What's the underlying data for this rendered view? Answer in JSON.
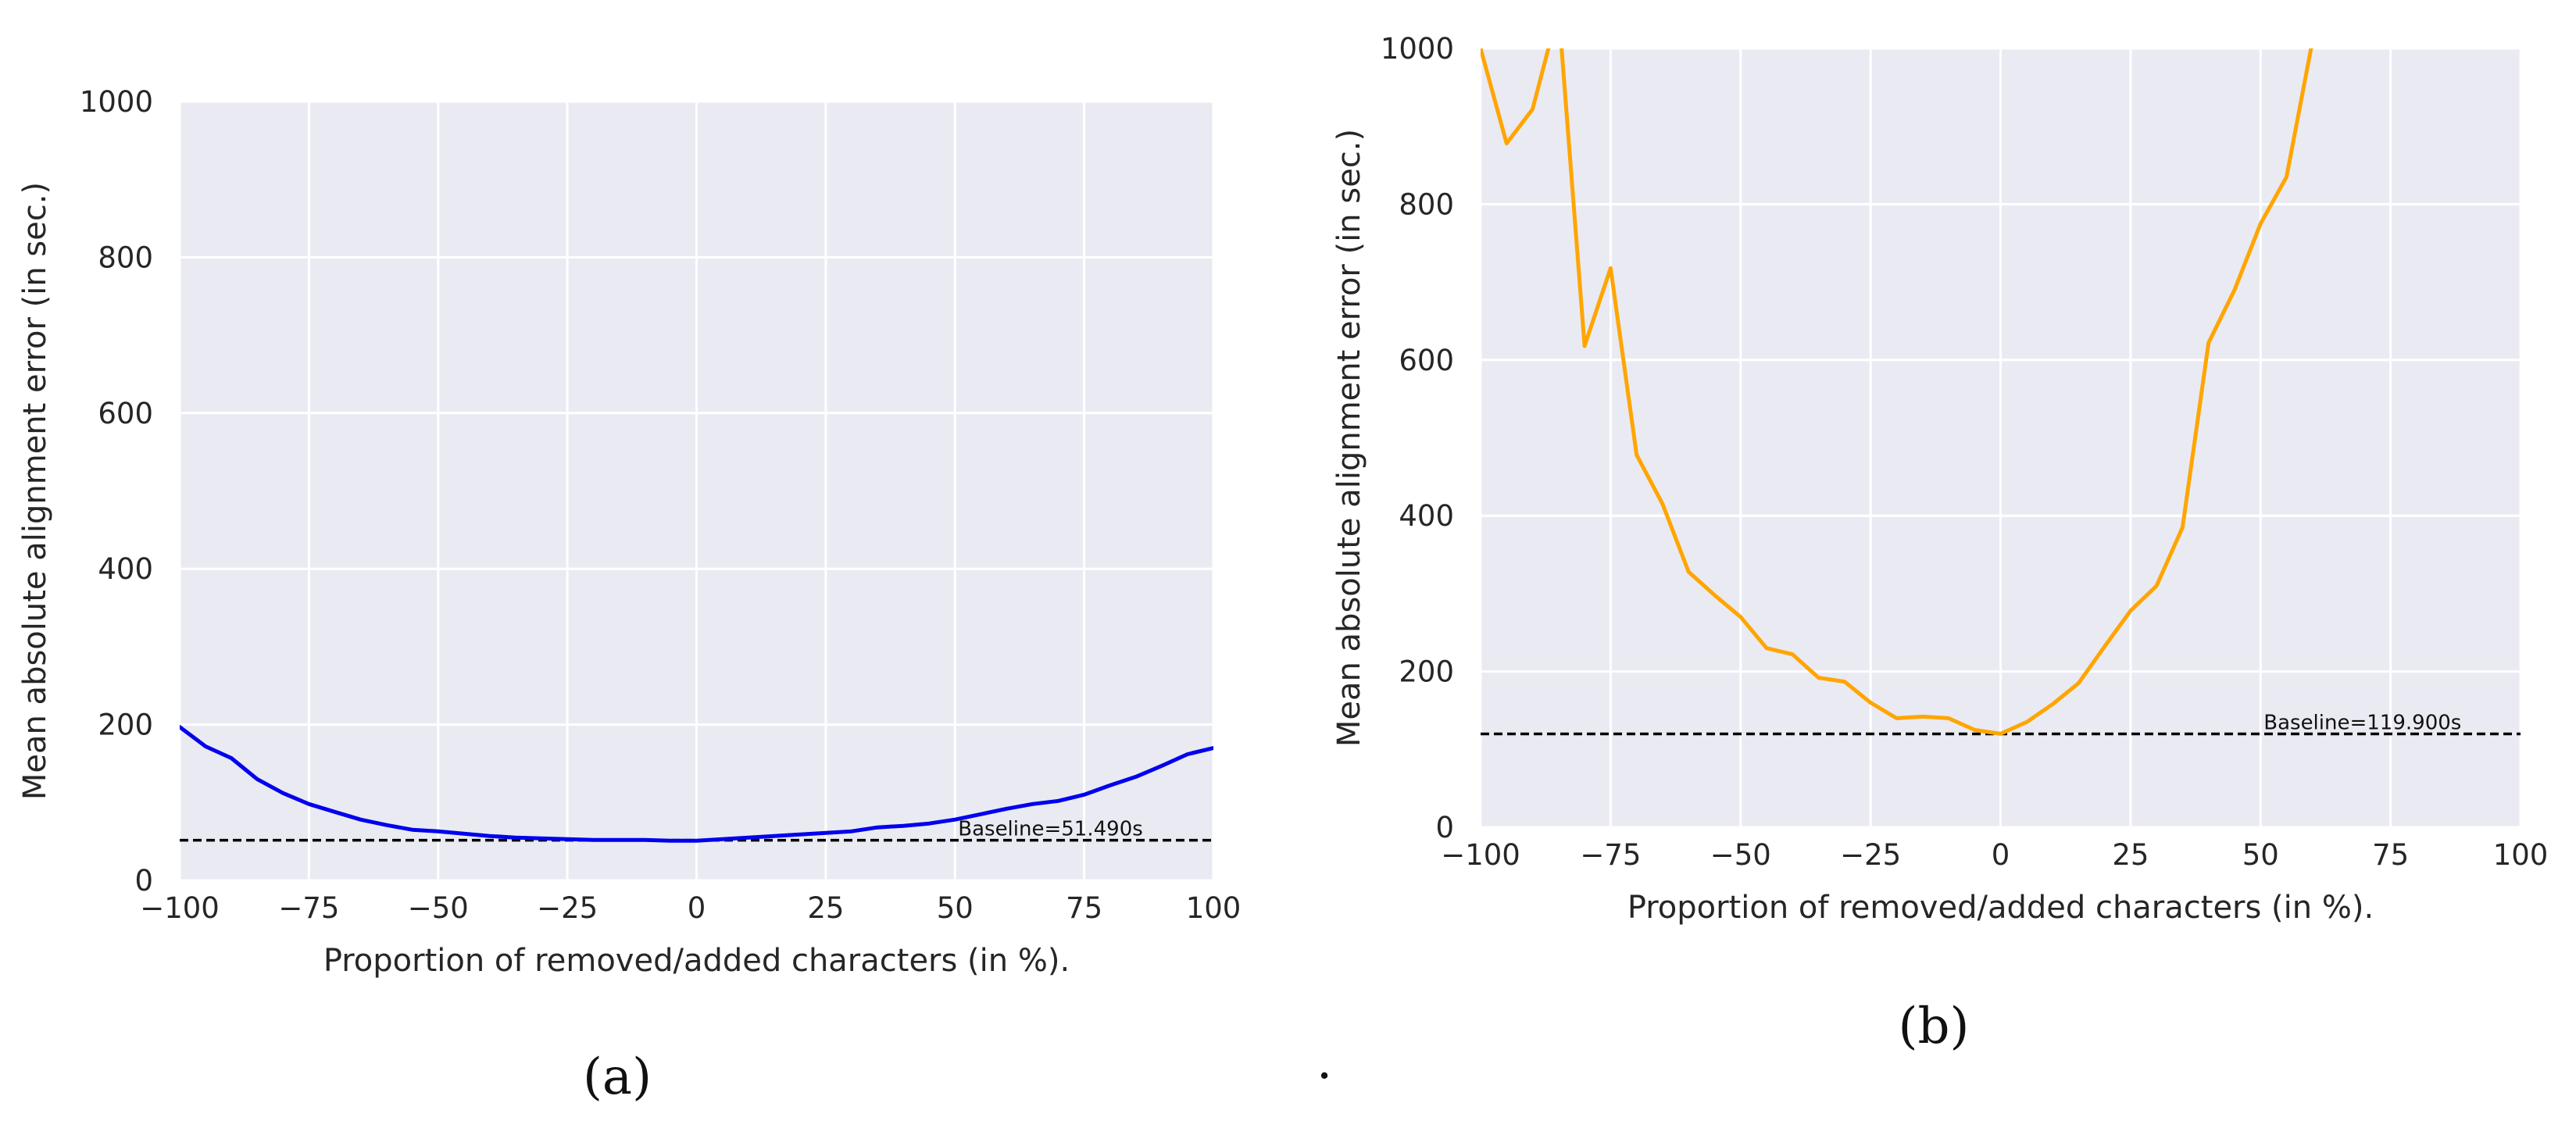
{
  "chart_data": [
    {
      "type": "line",
      "panel_label": "(a)",
      "xlabel": "Proportion of removed/added characters  (in %).",
      "ylabel": "Mean absolute alignment error (in sec.)",
      "xlim": [
        -100,
        100
      ],
      "ylim": [
        0,
        1000
      ],
      "xticks": [
        -100,
        -75,
        -50,
        -25,
        0,
        25,
        50,
        75,
        100
      ],
      "yticks": [
        0,
        200,
        400,
        600,
        800,
        1000
      ],
      "xtick_labels": [
        "−100",
        "−75",
        "−50",
        "−25",
        "0",
        "25",
        "50",
        "75",
        "100"
      ],
      "ytick_labels": [
        "0",
        "200",
        "400",
        "600",
        "800",
        "1000"
      ],
      "grid": true,
      "line_color": "#0000ee",
      "x": [
        -100,
        -95,
        -90,
        -85,
        -80,
        -75,
        -70,
        -65,
        -60,
        -55,
        -50,
        -45,
        -40,
        -35,
        -30,
        -25,
        -20,
        -15,
        -10,
        -5,
        0,
        5,
        10,
        15,
        20,
        25,
        30,
        35,
        40,
        45,
        50,
        55,
        60,
        65,
        70,
        75,
        80,
        85,
        90,
        95,
        100
      ],
      "y": [
        197,
        172,
        157,
        130,
        112,
        98,
        88,
        78,
        71,
        65,
        63,
        60,
        57,
        55,
        54,
        53,
        52,
        52,
        52,
        51,
        51,
        53,
        55,
        57,
        59,
        61,
        63,
        68,
        70,
        73,
        78,
        85,
        92,
        98,
        102,
        110,
        122,
        133,
        147,
        162,
        170
      ],
      "baseline": {
        "value": 51.49,
        "label": "Baseline=51.490s"
      }
    },
    {
      "type": "line",
      "panel_label": "(b)",
      "xlabel": "Proportion of removed/added characters  (in %).",
      "ylabel": "Mean absolute alignment error (in sec.)",
      "xlim": [
        -100,
        100
      ],
      "ylim": [
        0,
        1000
      ],
      "xticks": [
        -100,
        -75,
        -50,
        -25,
        0,
        25,
        50,
        75,
        100
      ],
      "yticks": [
        0,
        200,
        400,
        600,
        800,
        1000
      ],
      "xtick_labels": [
        "−100",
        "−75",
        "−50",
        "−25",
        "0",
        "25",
        "50",
        "75",
        "100"
      ],
      "ytick_labels": [
        "0",
        "200",
        "400",
        "600",
        "800",
        "1000"
      ],
      "grid": true,
      "line_color": "#ffa500",
      "x": [
        -100,
        -95,
        -90,
        -85,
        -80,
        -75,
        -70,
        -65,
        -60,
        -55,
        -50,
        -45,
        -40,
        -35,
        -30,
        -25,
        -20,
        -15,
        -10,
        -5,
        0,
        5,
        10,
        15,
        20,
        25,
        30,
        35,
        40,
        45,
        50,
        55,
        60
      ],
      "y": [
        1000,
        878,
        922,
        1050,
        618,
        718,
        478,
        415,
        328,
        298,
        270,
        230,
        222,
        192,
        187,
        160,
        140,
        142,
        140,
        125,
        120,
        135,
        158,
        185,
        232,
        278,
        310,
        385,
        622,
        690,
        775,
        835,
        1010
      ],
      "baseline": {
        "value": 119.9,
        "label": "Baseline=119.900s"
      }
    }
  ],
  "separator": "."
}
